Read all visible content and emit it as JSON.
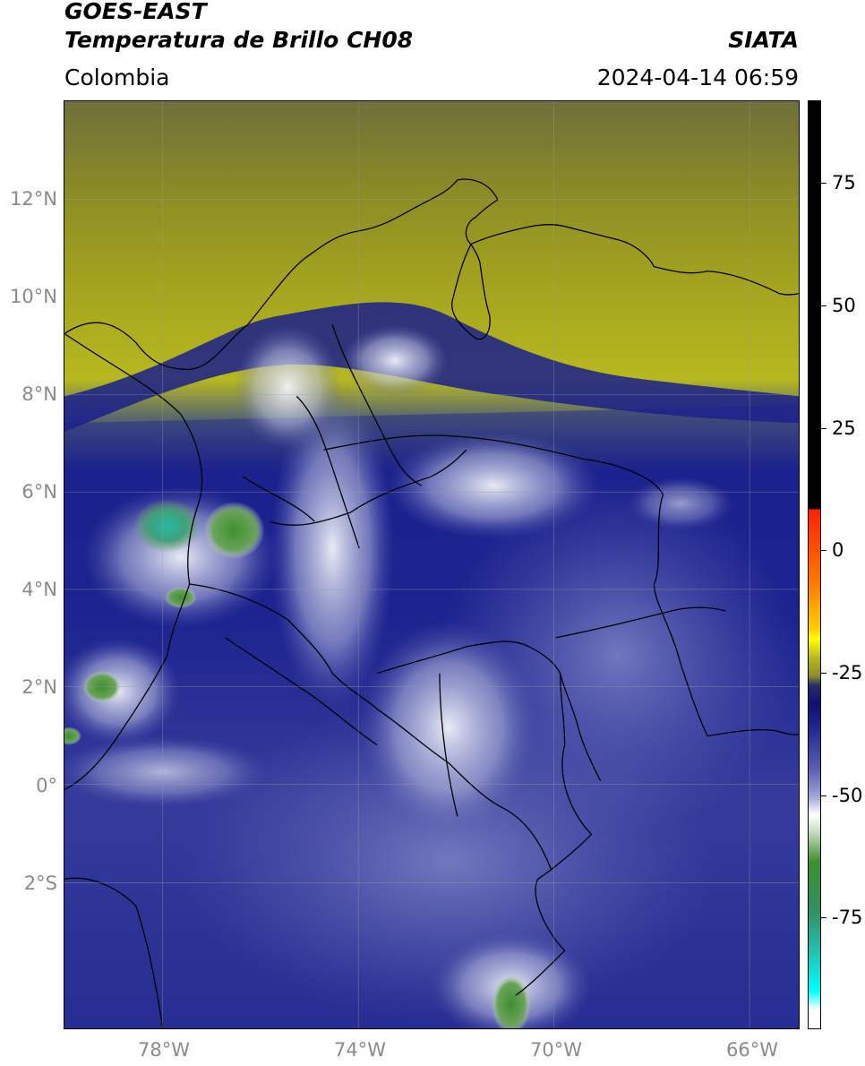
{
  "header": {
    "satellite": "GOES-EAST",
    "product": "Temperatura de Brillo CH08",
    "organization": "SIATA",
    "region": "Colombia",
    "datetime": "2024-04-14 06:59"
  },
  "map": {
    "lat_ticks": [
      "12°N",
      "10°N",
      "8°N",
      "6°N",
      "4°N",
      "2°N",
      "0°",
      "2°S"
    ],
    "lon_ticks": [
      "78°W",
      "74°W",
      "70°W",
      "66°W"
    ],
    "extent": {
      "lon_min": -80,
      "lon_max": -65,
      "lat_min": -5,
      "lat_max": 14
    },
    "colors": {
      "dry_olive": "#8c8c26",
      "dry_yellow": "#b8b820",
      "moist_navy": "#1a1f8c",
      "mid_blue": "#5a5fb0",
      "cold_white": "#e8ecf4",
      "deep_green": "#3f8f2f",
      "coldest_cyan": "#27b9a3"
    }
  },
  "colorbar": {
    "ticks": [
      "75",
      "50",
      "25",
      "0",
      "-25",
      "-50",
      "-75"
    ],
    "tick_values": [
      75,
      50,
      25,
      0,
      -25,
      -50,
      -75
    ],
    "range": [
      -95,
      90
    ]
  }
}
